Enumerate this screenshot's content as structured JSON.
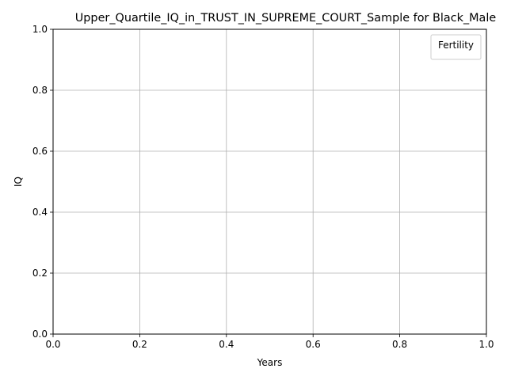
{
  "chart_data": {
    "type": "line",
    "title": "Upper_Quartile_IQ_in_TRUST_IN_SUPREME_COURT_Sample for Black_Male",
    "xlabel": "Years",
    "ylabel": "IQ",
    "xlim": [
      0.0,
      1.0
    ],
    "ylim": [
      0.0,
      1.0
    ],
    "xticks": [
      "0.0",
      "0.2",
      "0.4",
      "0.6",
      "0.8",
      "1.0"
    ],
    "yticks": [
      "0.0",
      "0.2",
      "0.4",
      "0.6",
      "0.8",
      "1.0"
    ],
    "grid": true,
    "legend": {
      "title": "Fertility",
      "placement": "top-right",
      "entries": []
    },
    "series": []
  }
}
